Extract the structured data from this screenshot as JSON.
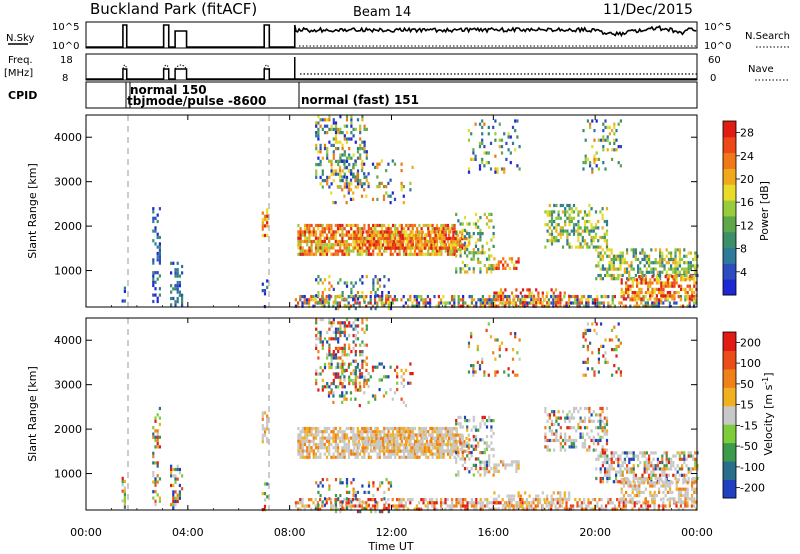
{
  "header": {
    "title": "Buckland Park (fitACF)",
    "beam": "Beam 14",
    "date": "11/Dec/2015"
  },
  "top_panels": {
    "nsky": {
      "label": "N.Sky",
      "tick_top": "10^5",
      "tick_bottom": "10^0",
      "right_label": "N.Search",
      "right_tick_top": "10^5",
      "right_tick_bottom": "10^0"
    },
    "freq": {
      "label": "Freq.",
      "unit": "[MHz]",
      "tick_top": "18",
      "tick_bottom": "8",
      "right_label": "Nave",
      "right_tick_top": "60",
      "right_tick_bottom": "0"
    },
    "cpid": {
      "label": "CPID",
      "entries": [
        {
          "text": "normal 150"
        },
        {
          "text": "tbjmode/pulse -8600"
        },
        {
          "text": "normal (fast) 151"
        }
      ]
    }
  },
  "chart_data": [
    {
      "type": "heatmap",
      "name": "power",
      "ylabel": "Slant Range [km]",
      "ylim": [
        180,
        4500
      ],
      "yticks": [
        1000,
        2000,
        3000,
        4000
      ],
      "colorbar": {
        "label": "Power [dB]",
        "ticks": [
          "4",
          "8",
          "12",
          "16",
          "20",
          "24",
          "28"
        ],
        "colors": [
          "#1e28d2",
          "#2c4cc0",
          "#2e7a9a",
          "#3c8f68",
          "#5ea84c",
          "#98cc3c",
          "#e8dc28",
          "#f2a81c",
          "#f07818",
          "#ec4818",
          "#e01c14"
        ]
      }
    },
    {
      "type": "heatmap",
      "name": "velocity",
      "ylabel": "Slant Range [km]",
      "ylim": [
        180,
        4500
      ],
      "yticks": [
        1000,
        2000,
        3000,
        4000
      ],
      "colorbar": {
        "label": "Velocity [m s^-1]",
        "ticks": [
          "200",
          "100",
          "50",
          "15",
          "-15",
          "-50",
          "-100",
          "-200"
        ],
        "colors": [
          "#2040c0",
          "#2a6e8c",
          "#3c9a4c",
          "#7ccc3c",
          "#c8c8c8",
          "#f0b020",
          "#f08018",
          "#ec4c18",
          "#e01c14"
        ]
      }
    }
  ],
  "xaxis": {
    "label": "Time UT",
    "ticks": [
      "00:00",
      "04:00",
      "08:00",
      "12:00",
      "16:00",
      "20:00",
      "00:00"
    ]
  }
}
